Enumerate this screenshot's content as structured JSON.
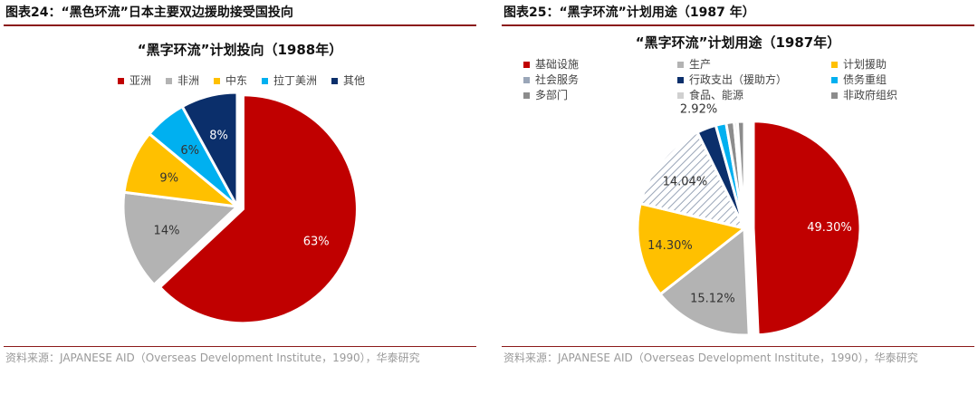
{
  "left": {
    "figure_title": "图表24：“黑色环流”日本主要双边援助接受国投向",
    "source": "资料来源：JAPANESE AID（Overseas Development Institute，1990），华泰研究"
  },
  "right": {
    "figure_title": "图表25：“黑字环流”计划用途（1987 年）",
    "source": "资料来源：JAPANESE AID（Overseas Development Institute，1990），华泰研究"
  },
  "colors": {
    "red": "#c00000",
    "gray": "#b3b3b3",
    "gold": "#ffc000",
    "cyan": "#00b0f0",
    "navy": "#0b2f6b",
    "hatch": "#d9dee6",
    "darkgray": "#8c8c8c",
    "lightgray": "#e6e6e6"
  },
  "chart_data": [
    {
      "type": "pie",
      "title": "“黑字环流”计划投向（1988年）",
      "legend_placement": "top",
      "slices": [
        {
          "name": "亚洲",
          "value": 63,
          "label": "63%",
          "color": "#c00000"
        },
        {
          "name": "非洲",
          "value": 14,
          "label": "14%",
          "color": "#b3b3b3"
        },
        {
          "name": "中东",
          "value": 9,
          "label": "9%",
          "color": "#ffc000"
        },
        {
          "name": "拉丁美洲",
          "value": 6,
          "label": "6%",
          "color": "#00b0f0"
        },
        {
          "name": "其他",
          "value": 8,
          "label": "8%",
          "color": "#0b2f6b"
        }
      ]
    },
    {
      "type": "pie",
      "title": "“黑字环流”计划用途（1987年）",
      "legend_placement": "top",
      "slices": [
        {
          "name": "基础设施",
          "value": 49.3,
          "label": "49.30%",
          "color": "#c00000"
        },
        {
          "name": "生产",
          "value": 15.12,
          "label": "15.12%",
          "color": "#b3b3b3"
        },
        {
          "name": "计划援助",
          "value": 14.3,
          "label": "14.30%",
          "color": "#ffc000"
        },
        {
          "name": "社会服务",
          "value": 14.04,
          "label": "14.04%",
          "color": "#d9dee6",
          "pattern": "hatch"
        },
        {
          "name": "行政支出（援助方）",
          "value": 2.92,
          "label": "2.92%",
          "color": "#0b2f6b"
        },
        {
          "name": "债务重组",
          "value": 1.58,
          "label": "1.58%",
          "color": "#00b0f0"
        },
        {
          "name": "多部门",
          "value": 1.2,
          "label": "",
          "color": "#8c8c8c"
        },
        {
          "name": "食品、能源",
          "value": 0.5,
          "label": "",
          "color": "#e6e6e6"
        },
        {
          "name": "非政府组织",
          "value": 1.04,
          "label": "",
          "color": "#8c8c8c"
        }
      ]
    }
  ]
}
